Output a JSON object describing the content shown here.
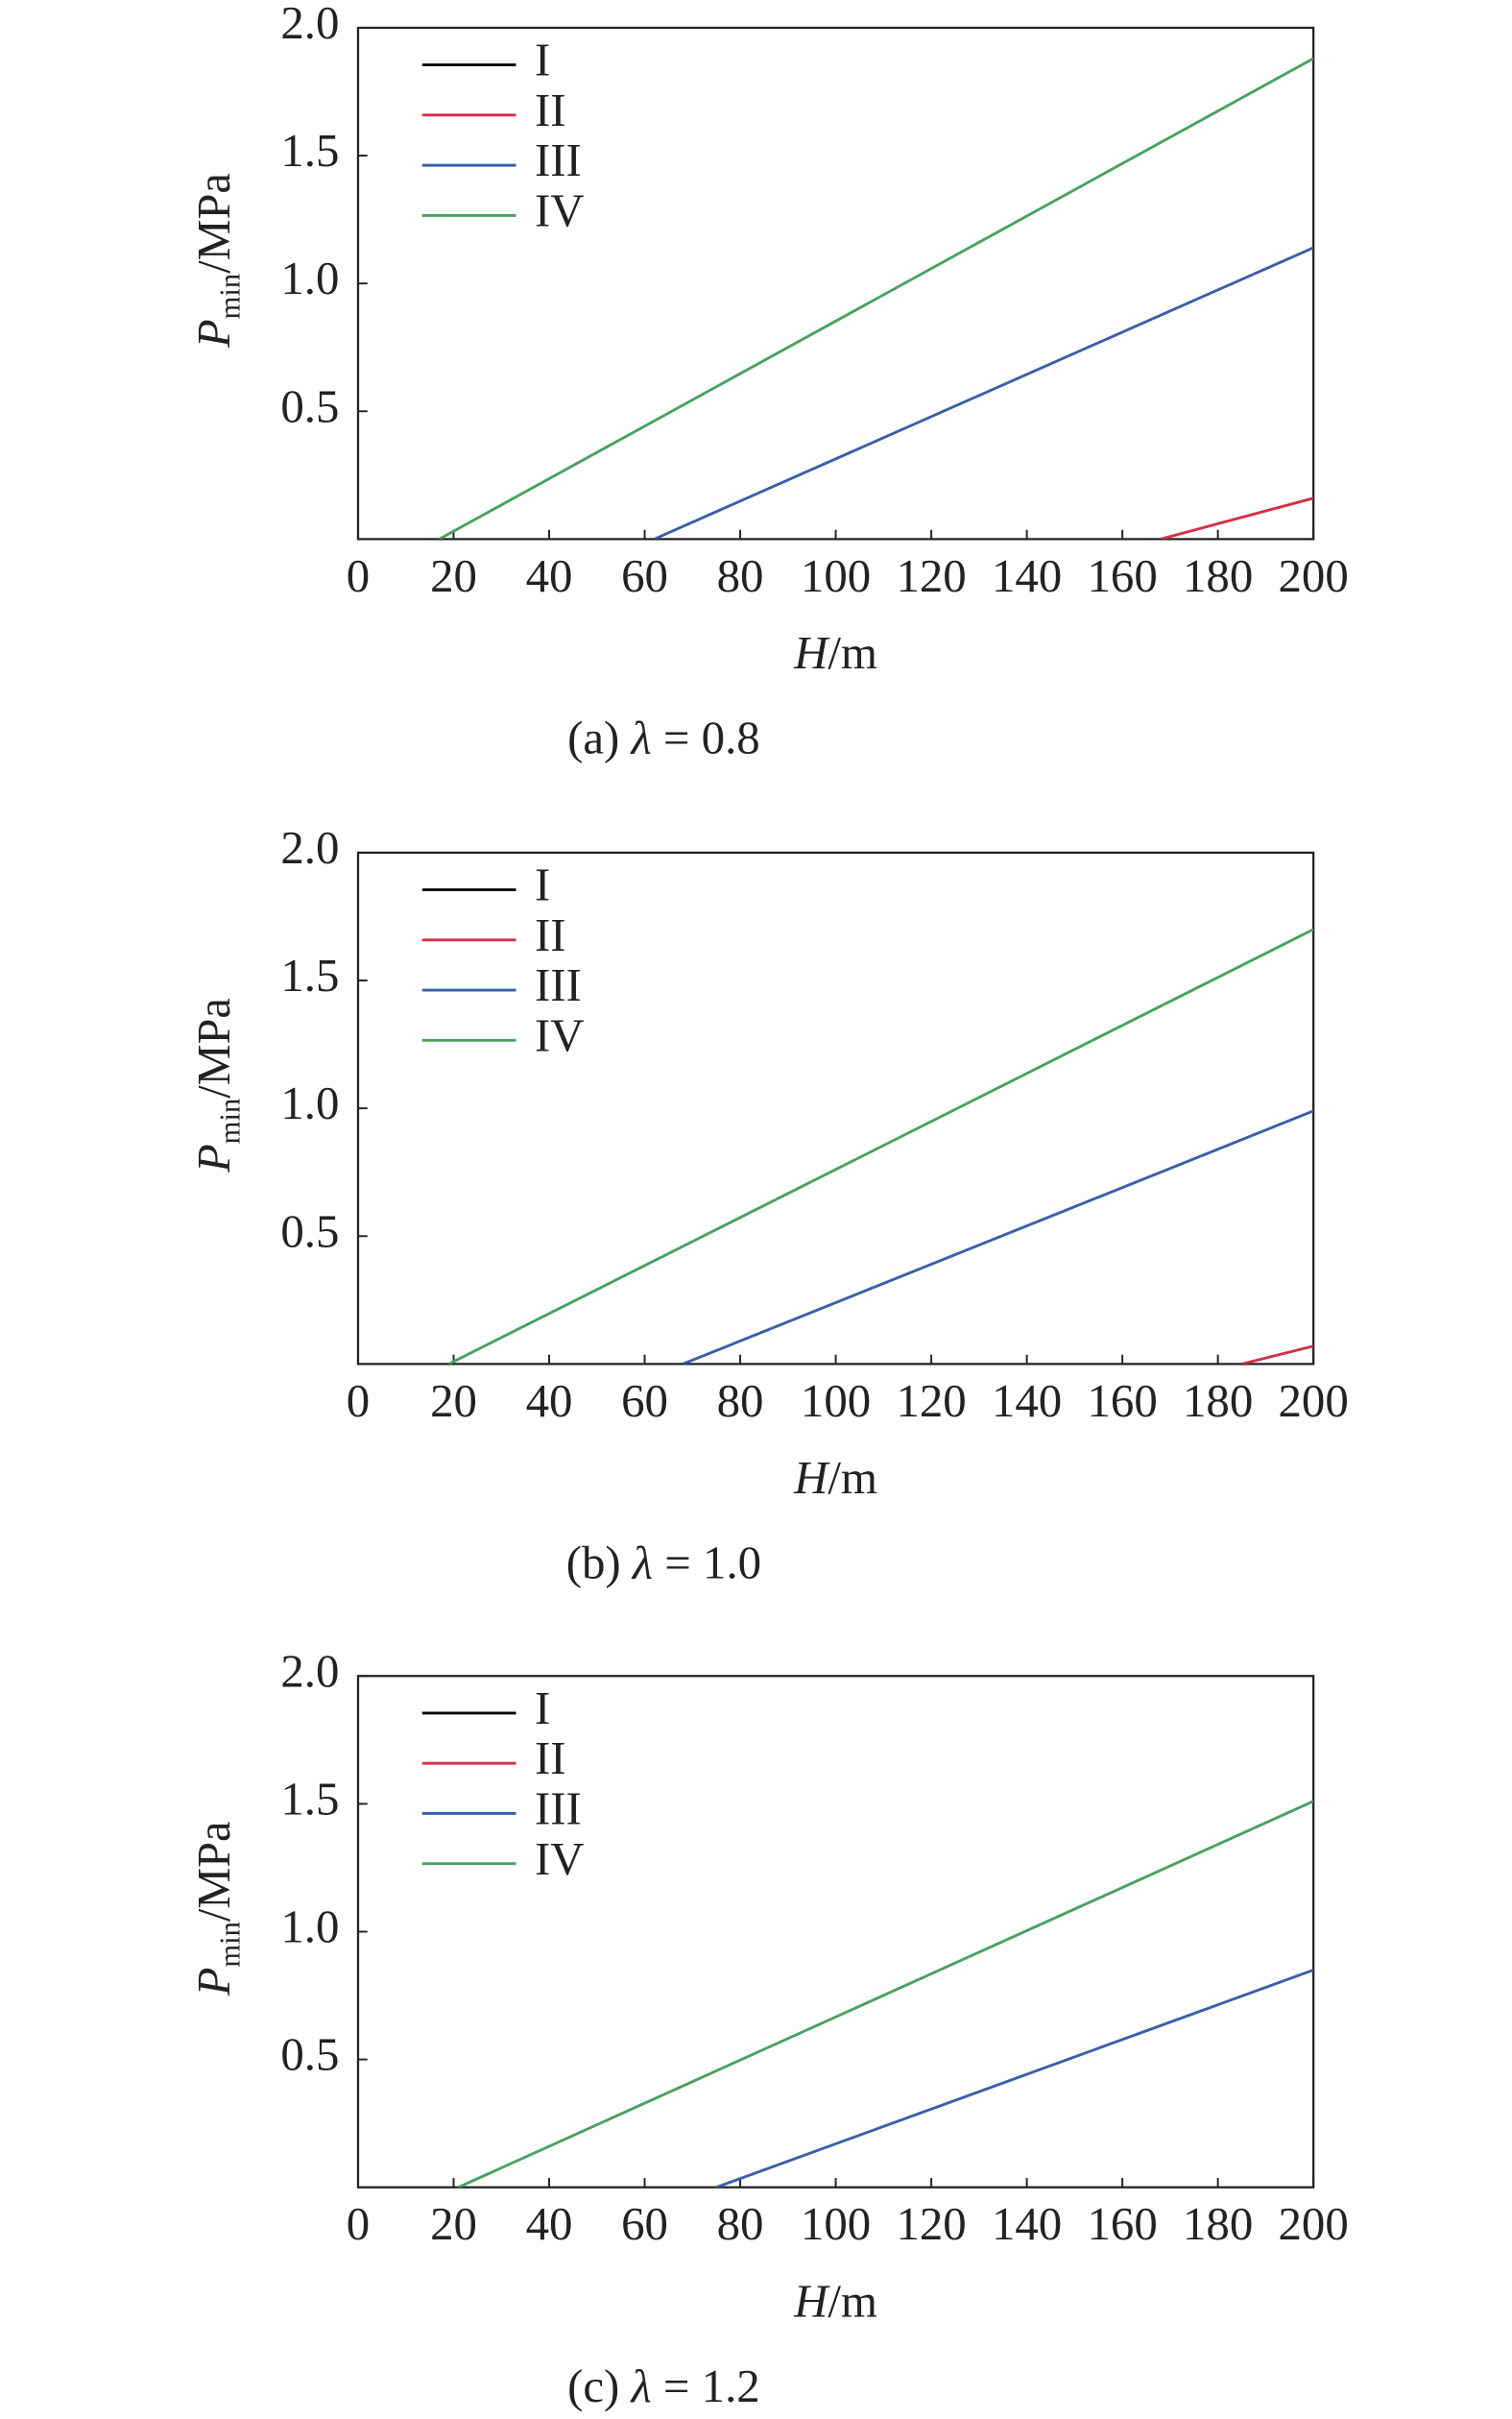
{
  "chart_data": [
    {
      "type": "line",
      "caption_parts": [
        "(a) ",
        "λ",
        " = 0.8"
      ],
      "xlabel_parts": [
        "H",
        "/m"
      ],
      "ylabel_parts": [
        "P",
        "min",
        "/MPa"
      ],
      "xlim": [
        0,
        200
      ],
      "xticks": [
        0,
        20,
        40,
        60,
        80,
        100,
        120,
        140,
        160,
        180,
        200
      ],
      "ylim": [
        0,
        2
      ],
      "yticks": [
        0.5,
        {
          "value": 1,
          "label": "1.0"
        },
        1.5,
        {
          "value": 2,
          "label": "2.0"
        }
      ],
      "legend": "upper left",
      "series": [
        {
          "name": "I",
          "color": "#000000",
          "x": [
            0,
            200
          ],
          "values": [
            null,
            null
          ]
        },
        {
          "name": "II",
          "color": "#d62f45",
          "x": [
            168,
            200
          ],
          "values": [
            0,
            0.16
          ]
        },
        {
          "name": "III",
          "color": "#3a5fa8",
          "x": [
            62,
            200
          ],
          "values": [
            0,
            1.14
          ]
        },
        {
          "name": "IV",
          "color": "#4aa160",
          "x": [
            17,
            200
          ],
          "values": [
            0,
            1.88
          ]
        }
      ]
    },
    {
      "type": "line",
      "caption_parts": [
        "(b) ",
        "λ",
        " = 1.0"
      ],
      "xlabel_parts": [
        "H",
        "/m"
      ],
      "ylabel_parts": [
        "P",
        "min",
        "/MPa"
      ],
      "xlim": [
        0,
        200
      ],
      "xticks": [
        0,
        20,
        40,
        60,
        80,
        100,
        120,
        140,
        160,
        180,
        200
      ],
      "ylim": [
        0,
        2
      ],
      "yticks": [
        0.5,
        {
          "value": 1,
          "label": "1.0"
        },
        1.5,
        {
          "value": 2,
          "label": "2.0"
        }
      ],
      "legend": "upper left",
      "series": [
        {
          "name": "I",
          "color": "#000000",
          "x": [
            0,
            200
          ],
          "values": [
            null,
            null
          ]
        },
        {
          "name": "II",
          "color": "#d62f45",
          "x": [
            185,
            200
          ],
          "values": [
            0,
            0.07
          ]
        },
        {
          "name": "III",
          "color": "#3a5fa8",
          "x": [
            68,
            200
          ],
          "values": [
            0,
            0.99
          ]
        },
        {
          "name": "IV",
          "color": "#4aa160",
          "x": [
            19,
            200
          ],
          "values": [
            0,
            1.7
          ]
        }
      ]
    },
    {
      "type": "line",
      "caption_parts": [
        "(c) ",
        "λ",
        " = 1.2"
      ],
      "xlabel_parts": [
        "H",
        "/m"
      ],
      "ylabel_parts": [
        "P",
        "min",
        "/MPa"
      ],
      "xlim": [
        0,
        200
      ],
      "xticks": [
        0,
        20,
        40,
        60,
        80,
        100,
        120,
        140,
        160,
        180,
        200
      ],
      "ylim": [
        0,
        2
      ],
      "yticks": [
        0.5,
        {
          "value": 1,
          "label": "1.0"
        },
        1.5,
        {
          "value": 2,
          "label": "2.0"
        }
      ],
      "legend": "upper left",
      "series": [
        {
          "name": "I",
          "color": "#000000",
          "x": [
            0,
            200
          ],
          "values": [
            null,
            null
          ]
        },
        {
          "name": "II",
          "color": "#d62f45",
          "x": [
            0,
            200
          ],
          "values": [
            null,
            null
          ]
        },
        {
          "name": "III",
          "color": "#3a5fa8",
          "x": [
            75,
            200
          ],
          "values": [
            0,
            0.85
          ]
        },
        {
          "name": "IV",
          "color": "#4aa160",
          "x": [
            21,
            200
          ],
          "values": [
            0,
            1.51
          ]
        }
      ]
    }
  ]
}
